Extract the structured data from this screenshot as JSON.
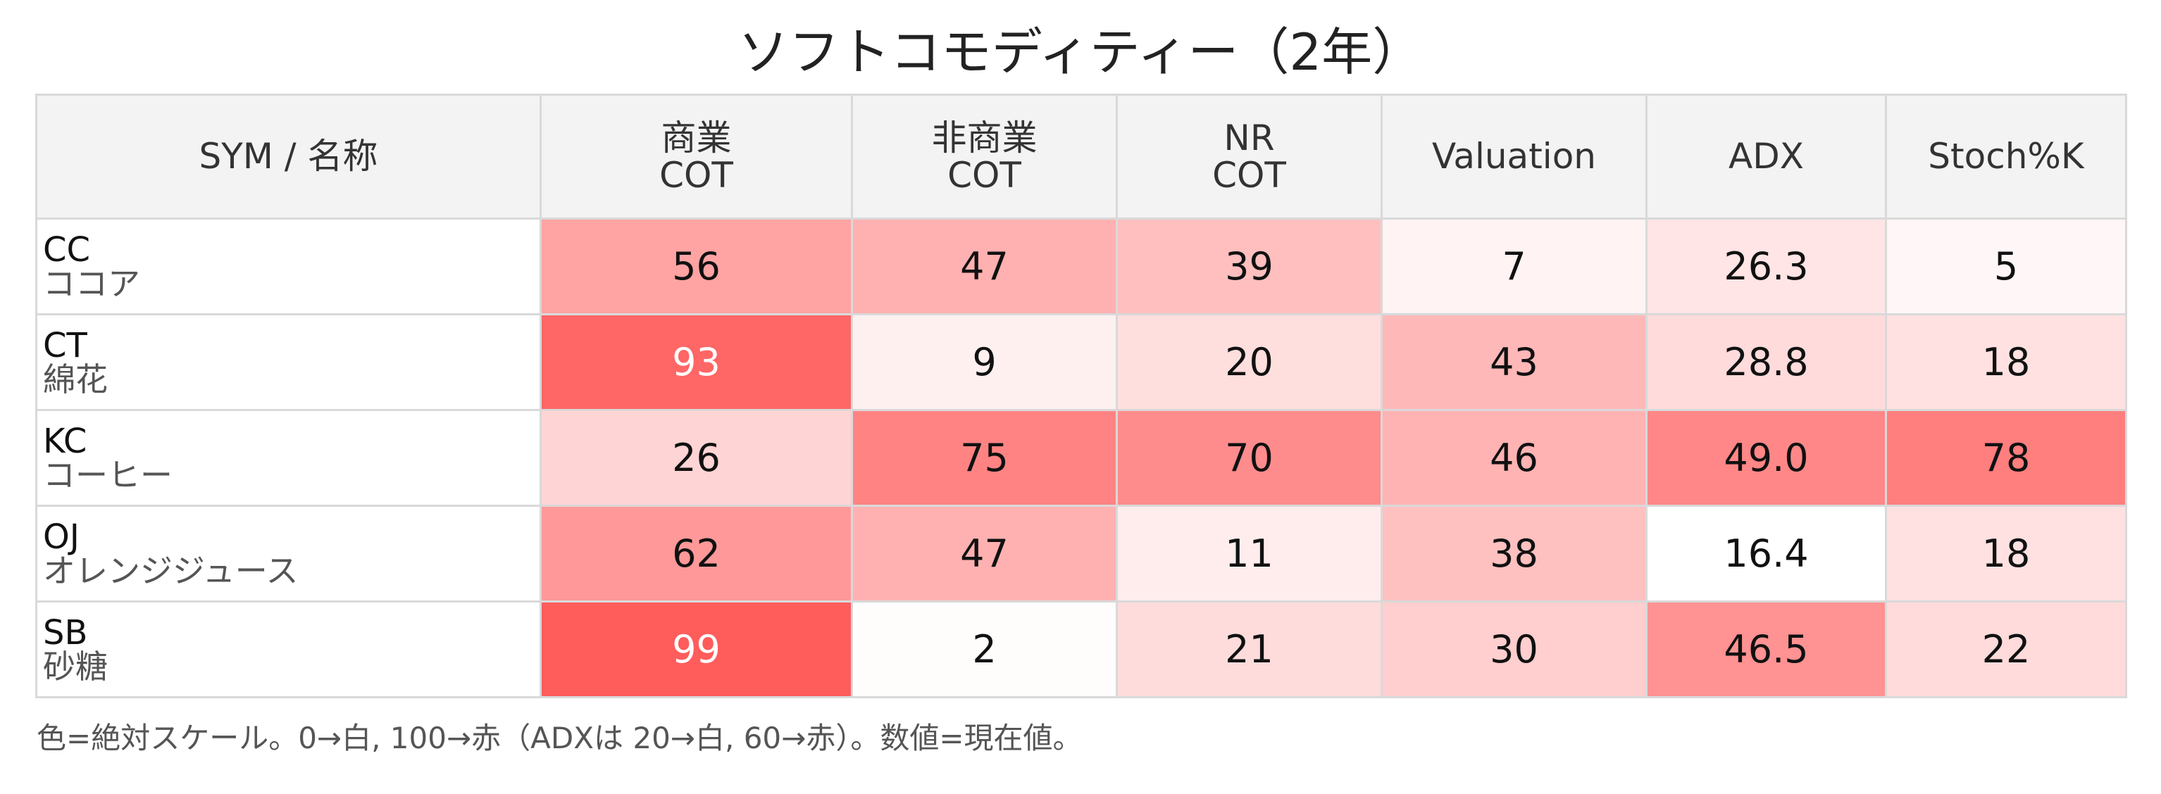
{
  "title": "ソフトコモディティー（2年）",
  "chart_data": {
    "type": "table",
    "title": "ソフトコモディティー（2年）",
    "columns": [
      "SYM / 名称",
      "商業\nCOT",
      "非商業\nCOT",
      "NR\nCOT",
      "Valuation",
      "ADX",
      "Stoch%K"
    ],
    "column_lines": [
      [
        "SYM / 名称"
      ],
      [
        "商業",
        "COT"
      ],
      [
        "非商業",
        "COT"
      ],
      [
        "NR",
        "COT"
      ],
      [
        "Valuation"
      ],
      [
        "ADX"
      ],
      [
        "Stoch%K"
      ]
    ],
    "rows": [
      {
        "sym": "CC",
        "name": "ココア",
        "values": [
          "56",
          "47",
          "39",
          "7",
          "26.3",
          "5"
        ]
      },
      {
        "sym": "CT",
        "name": "綿花",
        "values": [
          "93",
          "9",
          "20",
          "43",
          "28.8",
          "18"
        ]
      },
      {
        "sym": "KC",
        "name": "コーヒー",
        "values": [
          "26",
          "75",
          "70",
          "46",
          "49.0",
          "78"
        ]
      },
      {
        "sym": "OJ",
        "name": "オレンジジュース",
        "values": [
          "62",
          "47",
          "11",
          "38",
          "16.4",
          "18"
        ]
      },
      {
        "sym": "SB",
        "name": "砂糖",
        "values": [
          "99",
          "2",
          "21",
          "30",
          "46.5",
          "22"
        ]
      }
    ],
    "color_scale": {
      "low": "#ffffff",
      "high": "#ff5a5a",
      "default_range": [
        0,
        100
      ],
      "adx_range": [
        20,
        60
      ]
    }
  },
  "footer": "色=絶対スケール。0→白, 100→赤（ADXは 20→白, 60→赤）。数値=現在値。"
}
